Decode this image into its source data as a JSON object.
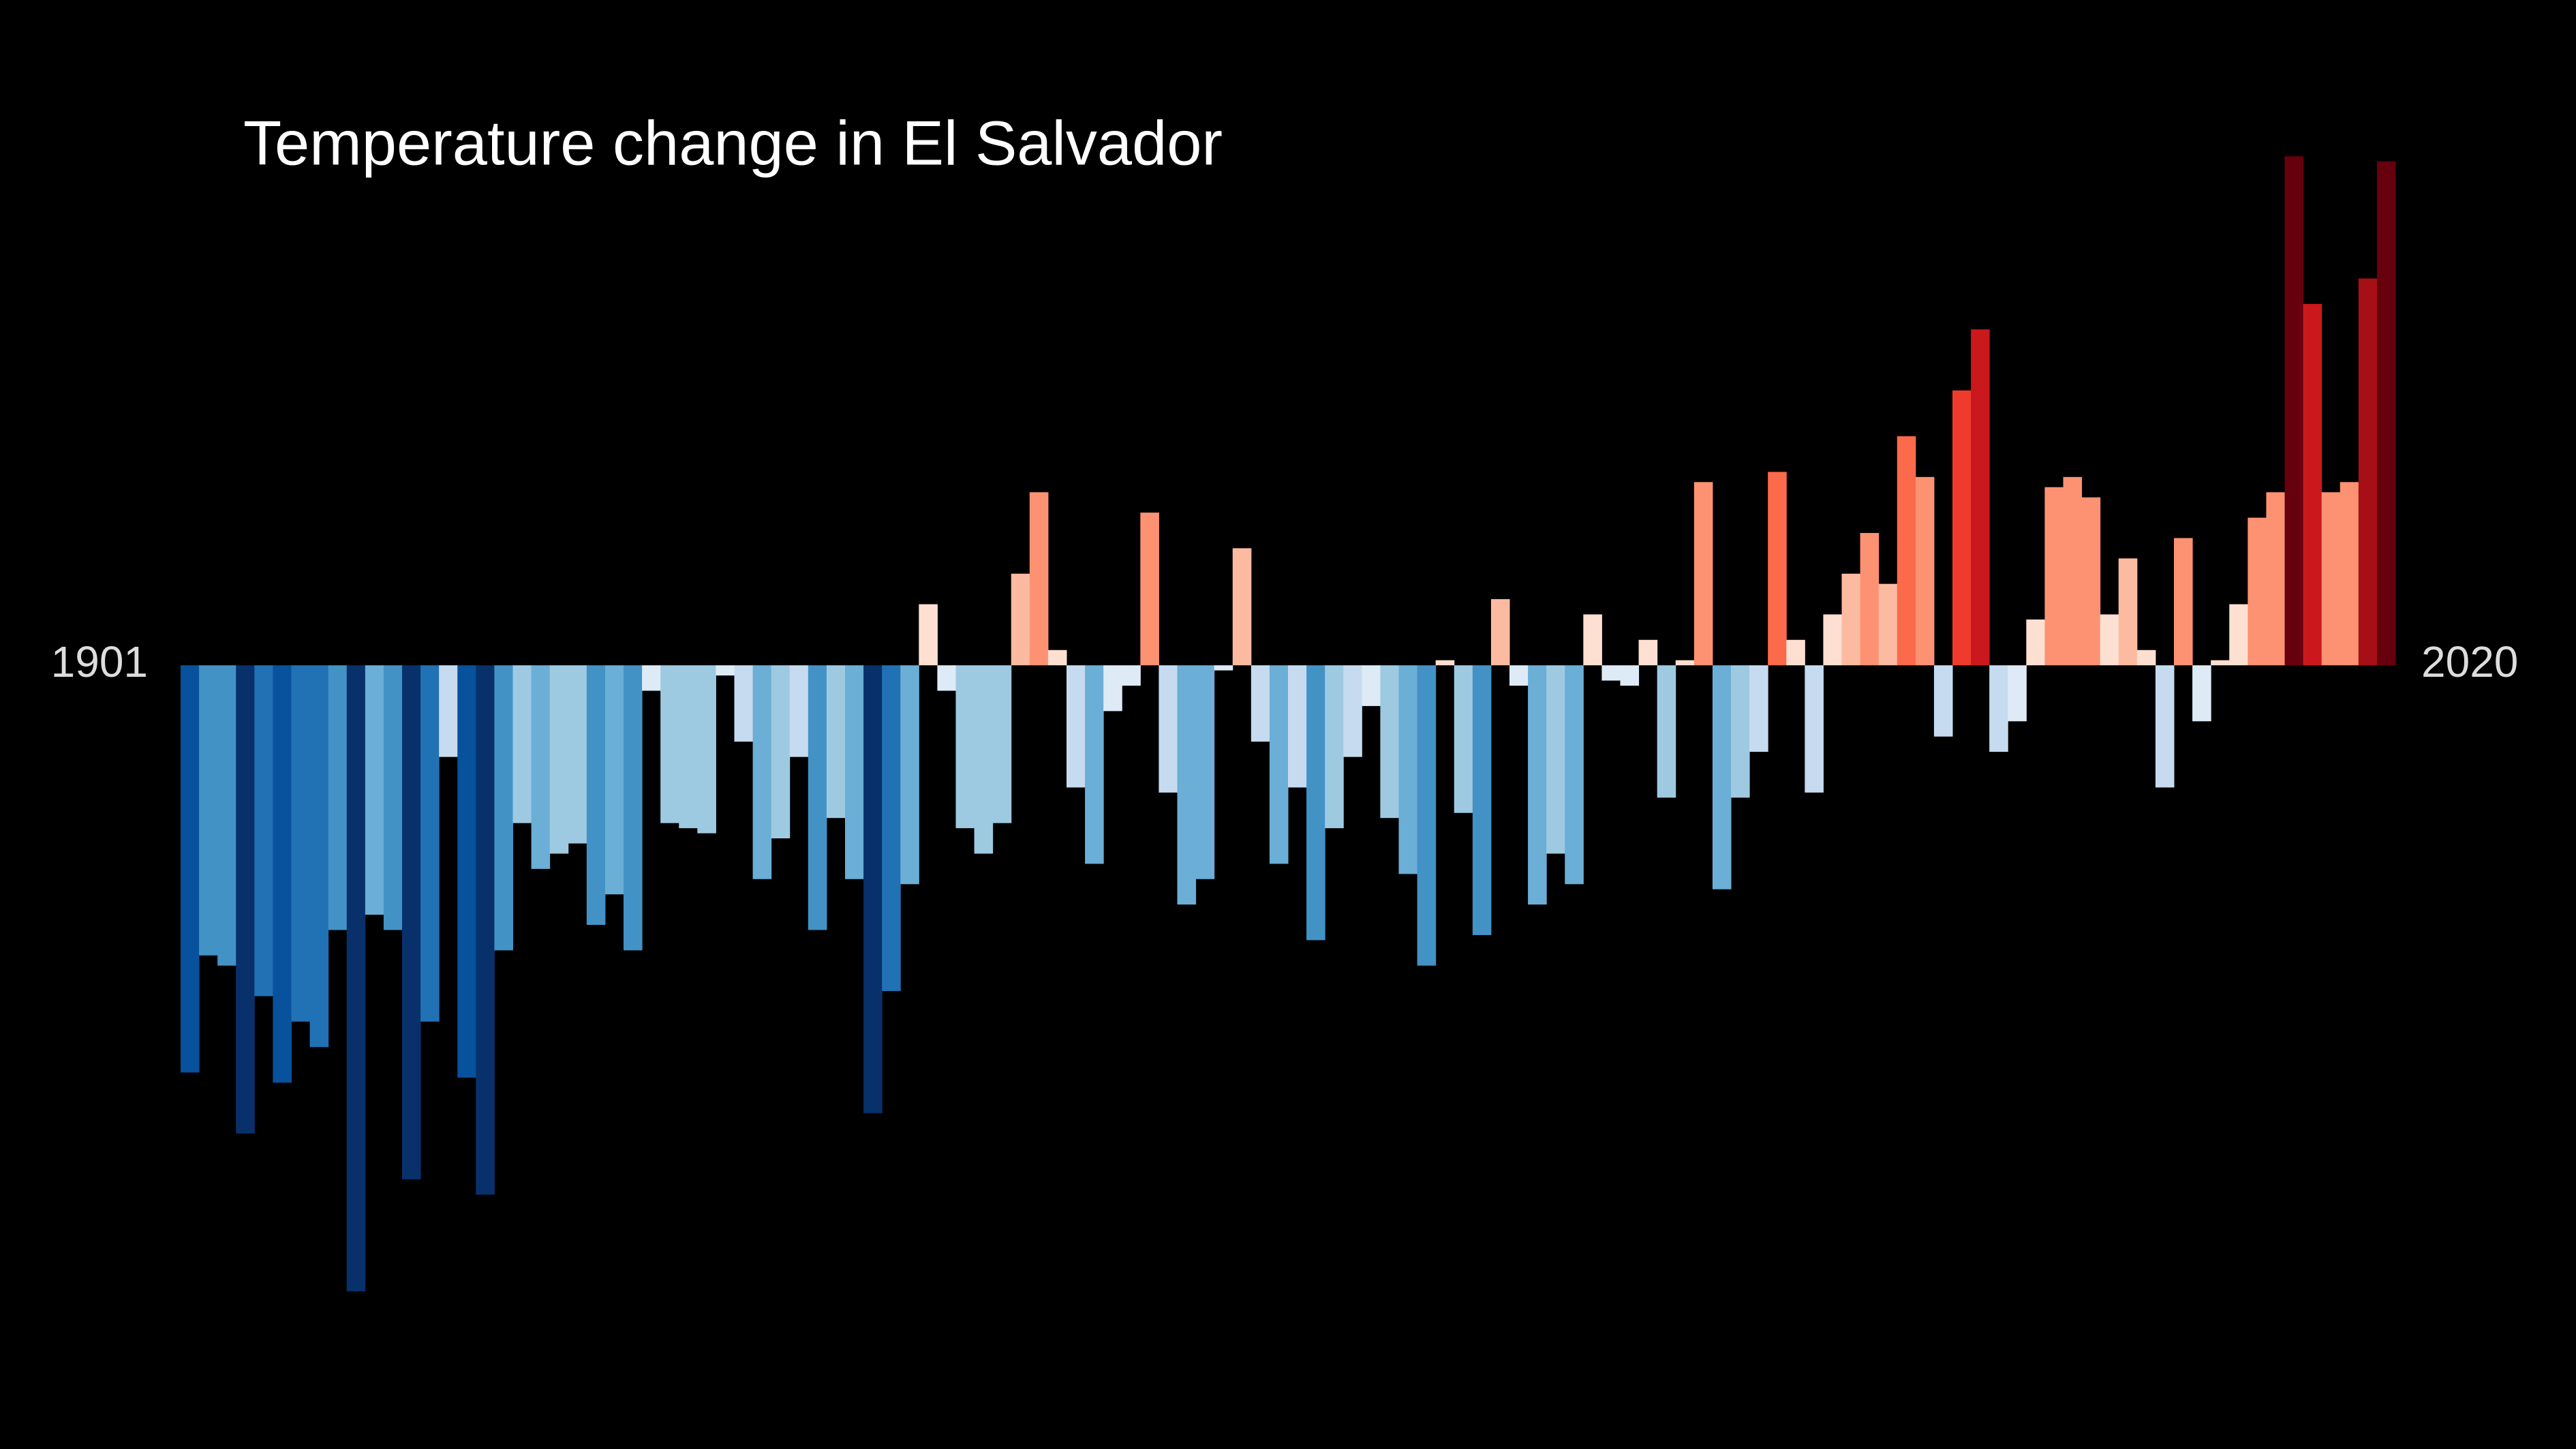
{
  "chart_data": {
    "type": "bar",
    "title": "Temperature change in El Salvador",
    "categories": [
      "1901",
      null,
      null,
      null,
      null,
      null,
      null,
      null,
      null,
      null,
      null,
      null,
      null,
      null,
      null,
      null,
      null,
      null,
      null,
      null,
      null,
      null,
      null,
      null,
      null,
      null,
      null,
      null,
      null,
      null,
      null,
      null,
      null,
      null,
      null,
      null,
      null,
      null,
      null,
      null,
      null,
      null,
      null,
      null,
      null,
      null,
      null,
      null,
      null,
      null,
      null,
      null,
      null,
      null,
      null,
      null,
      null,
      null,
      null,
      null,
      null,
      null,
      null,
      null,
      null,
      null,
      null,
      null,
      null,
      null,
      null,
      null,
      null,
      null,
      null,
      null,
      null,
      null,
      null,
      null,
      null,
      null,
      null,
      null,
      null,
      null,
      null,
      null,
      null,
      null,
      null,
      null,
      null,
      null,
      null,
      null,
      null,
      null,
      null,
      null,
      null,
      null,
      null,
      null,
      null,
      null,
      null,
      null,
      null,
      null,
      null,
      null,
      null,
      null,
      null,
      null,
      null,
      null,
      null,
      "2020"
    ],
    "values": [
      -0.8,
      -0.57,
      -0.59,
      -0.92,
      -0.65,
      -0.82,
      -0.7,
      -0.75,
      -0.52,
      -1.23,
      -0.49,
      -0.52,
      -1.01,
      -0.7,
      -0.18,
      -0.81,
      -1.04,
      -0.56,
      -0.31,
      -0.4,
      -0.37,
      -0.35,
      -0.51,
      -0.45,
      -0.56,
      -0.05,
      -0.31,
      -0.32,
      -0.33,
      -0.02,
      -0.15,
      -0.42,
      -0.34,
      -0.18,
      -0.52,
      -0.3,
      -0.42,
      -0.88,
      -0.64,
      -0.43,
      0.12,
      -0.05,
      -0.32,
      -0.37,
      -0.31,
      0.18,
      0.34,
      0.03,
      -0.24,
      -0.39,
      -0.09,
      -0.04,
      0.3,
      -0.25,
      -0.47,
      -0.42,
      -0.01,
      0.23,
      -0.15,
      -0.39,
      -0.24,
      -0.54,
      -0.32,
      -0.18,
      -0.08,
      -0.3,
      -0.41,
      -0.59,
      0.01,
      -0.29,
      -0.53,
      0.13,
      -0.04,
      -0.47,
      -0.37,
      -0.43,
      0.1,
      -0.03,
      -0.04,
      0.05,
      -0.26,
      0.01,
      0.36,
      -0.44,
      -0.26,
      -0.17,
      0.38,
      0.05,
      -0.25,
      0.1,
      0.18,
      0.26,
      0.16,
      0.45,
      0.37,
      -0.14,
      0.54,
      0.66,
      -0.17,
      -0.11,
      0.09,
      0.35,
      0.37,
      0.33,
      0.1,
      0.21,
      0.03,
      -0.24,
      0.25,
      -0.11,
      0.01,
      0.12,
      0.29,
      0.34,
      1.0,
      0.71,
      0.34,
      0.36,
      0.76,
      0.99
    ],
    "palette": [
      "#08306b",
      "#08519c",
      "#2171b5",
      "#4292c6",
      "#6baed6",
      "#9ecae1",
      "#c6dbef",
      "#deebf7",
      "#fee0d2",
      "#fcbba1",
      "#fc9272",
      "#fb6a4a",
      "#ef3b2c",
      "#cb181d",
      "#a50f15",
      "#67000d"
    ],
    "clim": [
      -1.0,
      1.0
    ],
    "ylim": [
      -1.3,
      1.05
    ]
  }
}
